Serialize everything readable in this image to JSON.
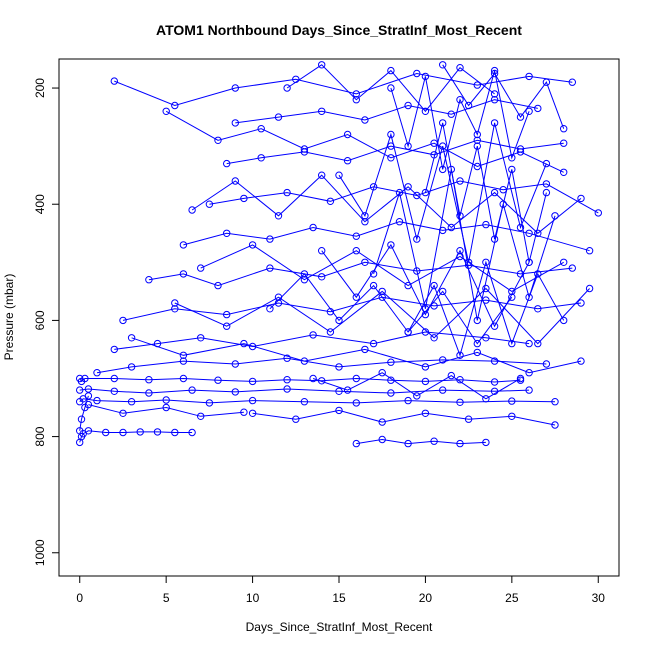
{
  "chart_data": {
    "type": "scatter",
    "title": "ATOM1 Northbound Days_Since_StratInf_Most_Recent",
    "xlabel": "Days_Since_StratInf_Most_Recent",
    "ylabel": "Pressure (mbar)",
    "xlim": [
      -1.2,
      31.2
    ],
    "ylim": [
      1040,
      150
    ],
    "y_reversed": true,
    "grid": false,
    "x_ticks": [
      {
        "value": 0,
        "label": "0"
      },
      {
        "value": 5,
        "label": "5"
      },
      {
        "value": 10,
        "label": "10"
      },
      {
        "value": 15,
        "label": "15"
      },
      {
        "value": 20,
        "label": "20"
      },
      {
        "value": 25,
        "label": "25"
      },
      {
        "value": 30,
        "label": "30"
      }
    ],
    "y_ticks": [
      {
        "value": 200,
        "label": "200"
      },
      {
        "value": 400,
        "label": "400"
      },
      {
        "value": 600,
        "label": "600"
      },
      {
        "value": 800,
        "label": "800"
      },
      {
        "value": 1000,
        "label": "1000"
      }
    ],
    "series_color": "#0000ff",
    "marker": "open-circle",
    "connect_points": true,
    "series": [
      {
        "x": [
          0.0,
          0.1,
          0.2,
          0.5,
          1.5,
          2.5,
          3.5,
          4.5,
          5.5,
          6.5
        ],
        "y": [
          810,
          800,
          795,
          790,
          793,
          793,
          792,
          792,
          793,
          793
        ]
      },
      {
        "x": [
          0.0,
          0.1,
          0.3,
          2.0,
          4.0,
          6.0,
          8.0,
          10.0,
          12.0,
          14.0,
          16.0,
          18.0,
          20.0,
          22.0,
          24.0,
          25.5
        ],
        "y": [
          700,
          705,
          700,
          700,
          702,
          700,
          703,
          705,
          702,
          704,
          700,
          703,
          705,
          702,
          706,
          703
        ]
      },
      {
        "x": [
          0.0,
          0.2,
          1.0,
          3.0,
          5.0,
          7.5,
          10.0,
          13.0,
          16.0,
          19.0,
          22.0,
          25.0,
          27.5
        ],
        "y": [
          740,
          735,
          738,
          740,
          737,
          742,
          738,
          740,
          742,
          738,
          741,
          739,
          740
        ]
      },
      {
        "x": [
          0.0,
          0.5,
          2.0,
          4.0,
          6.5,
          9.0,
          12.0,
          15.0,
          18.0,
          21.0,
          24.0,
          26.0
        ],
        "y": [
          720,
          718,
          722,
          725,
          720,
          723,
          718,
          722,
          725,
          720,
          722,
          720
        ]
      },
      {
        "x": [
          0.0,
          0.1,
          0.3,
          0.5
        ],
        "y": [
          790,
          770,
          750,
          730
        ]
      },
      {
        "x": [
          0.5,
          2.5,
          5.0,
          7.0,
          9.5
        ],
        "y": [
          745,
          760,
          750,
          765,
          758
        ]
      },
      {
        "x": [
          1.0,
          3.0,
          6.0,
          9.0,
          12.0,
          15.0,
          18.0,
          21.0,
          24.0,
          27.0
        ],
        "y": [
          690,
          680,
          670,
          675,
          665,
          680,
          672,
          668,
          670,
          675
        ]
      },
      {
        "x": [
          2.0,
          4.5,
          7.0,
          10.0,
          13.5,
          17.0,
          20.0,
          23.5,
          26.0
        ],
        "y": [
          650,
          640,
          630,
          645,
          625,
          640,
          620,
          630,
          640
        ]
      },
      {
        "x": [
          2.5,
          5.5,
          8.5,
          11.5,
          14.5,
          17.5,
          20.5,
          23.5,
          26.5,
          29.0
        ],
        "y": [
          600,
          580,
          590,
          570,
          585,
          560,
          575,
          565,
          580,
          570
        ]
      },
      {
        "x": [
          4.0,
          6.0,
          8.0,
          11.0,
          14.0,
          16.5,
          19.5,
          22.5,
          25.5,
          28.5
        ],
        "y": [
          530,
          520,
          540,
          510,
          525,
          500,
          515,
          505,
          520,
          510
        ]
      },
      {
        "x": [
          6.0,
          8.5,
          11.0,
          13.5,
          16.0,
          18.5,
          21.0,
          23.5,
          26.0,
          29.5
        ],
        "y": [
          470,
          450,
          460,
          440,
          455,
          430,
          445,
          435,
          450,
          480
        ]
      },
      {
        "x": [
          7.5,
          9.5,
          12.0,
          14.5,
          17.0,
          19.5,
          22.0,
          24.5,
          27.0,
          30.0
        ],
        "y": [
          400,
          390,
          380,
          395,
          370,
          385,
          360,
          375,
          365,
          415
        ]
      },
      {
        "x": [
          8.5,
          10.5,
          13.0,
          15.5,
          18.0,
          20.5,
          23.0,
          25.5,
          28.0
        ],
        "y": [
          330,
          320,
          310,
          325,
          300,
          315,
          290,
          305,
          295
        ]
      },
      {
        "x": [
          9.0,
          11.5,
          14.0,
          16.5,
          19.0,
          21.5,
          24.0,
          26.5
        ],
        "y": [
          260,
          250,
          240,
          255,
          230,
          245,
          220,
          235
        ]
      },
      {
        "x": [
          2.0,
          5.5,
          9.0,
          12.5,
          16.0,
          19.5,
          23.0,
          26.0,
          28.5
        ],
        "y": [
          188,
          230,
          200,
          185,
          210,
          175,
          195,
          180,
          190
        ]
      },
      {
        "x": [
          5.0,
          8.0,
          10.5,
          13.0,
          15.5,
          18.0,
          20.5,
          23.0,
          25.5,
          28.0
        ],
        "y": [
          240,
          290,
          270,
          305,
          280,
          320,
          295,
          335,
          310,
          345
        ]
      },
      {
        "x": [
          6.5,
          9.0,
          11.5,
          14.0,
          16.5,
          19.0,
          21.5,
          24.0,
          26.5,
          29.0
        ],
        "y": [
          410,
          360,
          420,
          350,
          430,
          370,
          440,
          380,
          450,
          390
        ]
      },
      {
        "x": [
          7.0,
          10.0,
          13.0,
          16.0,
          19.0,
          22.0,
          25.0,
          28.0
        ],
        "y": [
          510,
          470,
          530,
          480,
          540,
          490,
          550,
          500
        ]
      },
      {
        "x": [
          5.5,
          8.5,
          11.5,
          14.5,
          17.5,
          20.5,
          23.5,
          26.5,
          29.5
        ],
        "y": [
          570,
          610,
          560,
          620,
          550,
          630,
          545,
          640,
          545
        ]
      },
      {
        "x": [
          3.0,
          6.0,
          9.5,
          13.0,
          16.5,
          20.0,
          23.0,
          26.0,
          29.0
        ],
        "y": [
          630,
          660,
          640,
          670,
          650,
          680,
          655,
          690,
          670
        ]
      },
      {
        "x": [
          10.0,
          12.5,
          15.0,
          17.5,
          20.0,
          22.5,
          25.0,
          27.5
        ],
        "y": [
          760,
          770,
          755,
          775,
          760,
          770,
          765,
          780
        ]
      },
      {
        "x": [
          16.0,
          17.5,
          19.0,
          20.5,
          22.0,
          23.5
        ],
        "y": [
          812,
          805,
          812,
          808,
          812,
          810
        ]
      },
      {
        "x": [
          12.0,
          14.0,
          16.0,
          18.0,
          20.0,
          22.0,
          24.0
        ],
        "y": [
          200,
          160,
          220,
          170,
          240,
          165,
          210
        ]
      },
      {
        "x": [
          15.0,
          16.5,
          18.0,
          19.5,
          21.0,
          22.5,
          24.0,
          25.5,
          27.0
        ],
        "y": [
          350,
          420,
          280,
          460,
          300,
          500,
          260,
          440,
          330
        ]
      },
      {
        "x": [
          17.0,
          18.5,
          20.0,
          21.5,
          23.0,
          24.5,
          26.0,
          27.5
        ],
        "y": [
          520,
          380,
          580,
          340,
          600,
          400,
          560,
          420
        ]
      },
      {
        "x": [
          18.0,
          19.0,
          20.0,
          21.0,
          22.0,
          23.0,
          24.0,
          25.0,
          26.0
        ],
        "y": [
          200,
          300,
          180,
          340,
          220,
          280,
          170,
          320,
          240
        ]
      },
      {
        "x": [
          19.0,
          20.5,
          22.0,
          23.5,
          25.0,
          26.5,
          28.0
        ],
        "y": [
          620,
          540,
          660,
          500,
          640,
          520,
          600
        ]
      },
      {
        "x": [
          13.5,
          15.5,
          17.5,
          19.5,
          21.5,
          23.5,
          25.5
        ],
        "y": [
          700,
          720,
          690,
          730,
          695,
          735,
          700
        ]
      },
      {
        "x": [
          20.0,
          21.0,
          22.0,
          23.0,
          24.0,
          25.0,
          26.0,
          27.0
        ],
        "y": [
          380,
          260,
          420,
          300,
          460,
          340,
          500,
          380
        ]
      },
      {
        "x": [
          21.0,
          22.5,
          24.0,
          25.5,
          27.0,
          28.0
        ],
        "y": [
          160,
          230,
          175,
          250,
          190,
          270
        ]
      },
      {
        "x": [
          14.0,
          16.0,
          18.0,
          20.0,
          22.0,
          24.0,
          26.0
        ],
        "y": [
          480,
          560,
          470,
          590,
          480,
          610,
          500
        ]
      },
      {
        "x": [
          11.0,
          13.0,
          15.0,
          17.0,
          19.0,
          21.0,
          23.0,
          25.0
        ],
        "y": [
          580,
          520,
          600,
          540,
          620,
          550,
          640,
          560
        ]
      }
    ]
  }
}
